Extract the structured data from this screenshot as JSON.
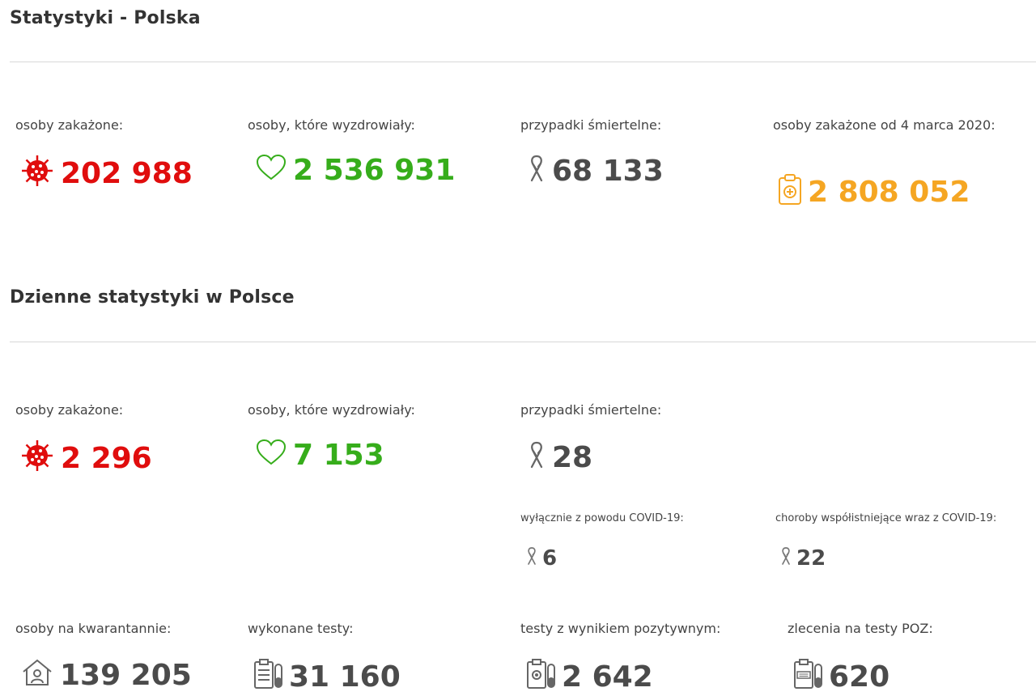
{
  "colors": {
    "infected": "#e00d0d",
    "recovered": "#36ad1b",
    "deaths": "#4b4b4b",
    "total": "#f5a623"
  },
  "section1": {
    "title": "Statystyki - Polska",
    "infected_label": "osoby zakażone:",
    "infected_value": "202 988",
    "recovered_label": "osoby, które wyzdrowiały:",
    "recovered_value": "2 536 931",
    "deaths_label": "przypadki śmiertelne:",
    "deaths_value": "68 133",
    "total_label": "osoby zakażone od 4 marca 2020:",
    "total_value": "2 808 052"
  },
  "section2": {
    "title": "Dzienne statystyki w Polsce",
    "infected_label": "osoby zakażone:",
    "infected_value": "2 296",
    "recovered_label": "osoby, które wyzdrowiały:",
    "recovered_value": "7 153",
    "deaths_label": "przypadki śmiertelne:",
    "deaths_value": "28",
    "covid_only_label": "wyłącznie z powodu COVID-19:",
    "covid_only_value": "6",
    "comorbid_label": "choroby współistniejące wraz z COVID-19:",
    "comorbid_value": "22",
    "quarantine_label": "osoby na kwarantannie:",
    "quarantine_value": "139 205",
    "tests_label": "wykonane testy:",
    "tests_value": "31 160",
    "positive_label": "testy z wynikiem pozytywnym:",
    "positive_value": "2 642",
    "poz_label": "zlecenia na testy POZ:",
    "poz_value": "620"
  }
}
